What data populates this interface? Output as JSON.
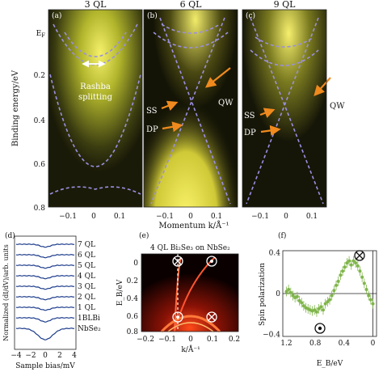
{
  "charts": {
    "arpes": [
      {
        "panel": "(a)",
        "title": "3 QL",
        "energies_eV": [
          0.0,
          0.2,
          0.4,
          0.6,
          0.8
        ],
        "y_tick_labels": [
          "E_F",
          "0.2",
          "0.4",
          "0.6",
          "0.8"
        ],
        "x_tick_labels": [
          "−0.1",
          "0",
          "0.1"
        ],
        "annotation": "Rashba splitting"
      },
      {
        "panel": "(b)",
        "title": "6 QL",
        "x_tick_labels": [
          "−0.1",
          "0",
          "0.1"
        ],
        "annotations": [
          "SS",
          "DP",
          "QW"
        ]
      },
      {
        "panel": "(c)",
        "title": "9 QL",
        "x_tick_labels": [
          "−0.1",
          "0",
          "0.1"
        ],
        "annotations": [
          "SS",
          "DP",
          "QW"
        ]
      }
    ],
    "y_label": "Binding energy/eV",
    "x_label": "Momentum k/Å⁻¹",
    "sts": {
      "panel": "(d)",
      "ylabel": "Normalized (dI/dV)/arb. units",
      "xlabel": "Sample bias/mV",
      "x_tick_labels": [
        "−4",
        "−2",
        "0",
        "2",
        "4"
      ],
      "curves": [
        "7 QL",
        "6 QL",
        "5 QL",
        "4 QL",
        "3 QL",
        "2 QL",
        "1 QL",
        "1BLBi",
        "NbSe₂"
      ]
    },
    "calc": {
      "panel": "(e)",
      "title": "4 QL Bi₂Se₃ on NbSe₂",
      "ylabel": "E_B/eV",
      "xlabel": "k/Å⁻¹",
      "y_tick_labels": [
        "0",
        "0.2",
        "0.4",
        "0.6",
        "0.8"
      ],
      "x_tick_labels": [
        "−0.2",
        "−0.1",
        "0",
        "0.1",
        "0.2"
      ]
    },
    "spin": {
      "panel": "(f)",
      "ylabel": "Spin polarization",
      "xlabel": "E_B/eV",
      "x_tick_labels": [
        "1.2",
        "0.8",
        "0.4",
        "0"
      ],
      "y_tick_labels": [
        "0.4",
        "0",
        "−0.4"
      ],
      "xlim": [
        1.25,
        -0.05
      ],
      "ylim": [
        -0.42,
        0.42
      ]
    }
  },
  "chart_data": [
    {
      "type": "scatter",
      "panel": "(f)",
      "xlabel": "E_B/eV",
      "ylabel": "Spin polarization",
      "xlim": [
        1.25,
        -0.05
      ],
      "ylim": [
        -0.42,
        0.42
      ],
      "x": [
        1.2,
        1.17,
        1.14,
        1.11,
        1.08,
        1.05,
        1.02,
        0.99,
        0.96,
        0.93,
        0.9,
        0.87,
        0.84,
        0.81,
        0.78,
        0.75,
        0.72,
        0.69,
        0.66,
        0.63,
        0.6,
        0.57,
        0.54,
        0.51,
        0.48,
        0.45,
        0.42,
        0.39,
        0.36,
        0.33,
        0.3,
        0.27,
        0.24,
        0.21,
        0.18,
        0.15,
        0.12,
        0.09,
        0.06,
        0.03,
        0.0
      ],
      "y": [
        0.02,
        0.04,
        0.01,
        -0.02,
        -0.04,
        -0.03,
        -0.07,
        -0.09,
        -0.12,
        -0.14,
        -0.15,
        -0.16,
        -0.17,
        -0.16,
        -0.18,
        -0.15,
        -0.13,
        -0.16,
        -0.1,
        -0.08,
        -0.06,
        -0.02,
        0.03,
        0.08,
        0.12,
        0.18,
        0.22,
        0.26,
        0.3,
        0.32,
        0.28,
        0.32,
        0.3,
        0.27,
        0.22,
        0.16,
        0.1,
        0.04,
        -0.02,
        -0.06,
        -0.1
      ]
    }
  ]
}
